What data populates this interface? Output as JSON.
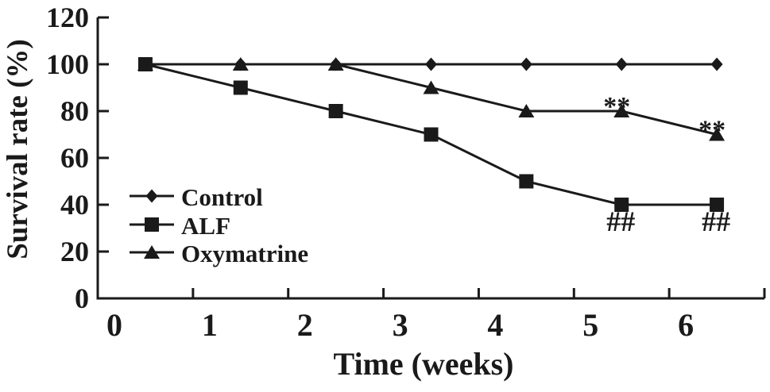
{
  "figure": {
    "background": "#ffffff",
    "ink_color": "#1a1a1a"
  },
  "chart_data": {
    "type": "line",
    "title": "",
    "xlabel": "Time (weeks)",
    "ylabel": "Survival rate (%)",
    "x_categories": [
      0,
      1,
      2,
      3,
      4,
      5,
      6
    ],
    "ylim": [
      0,
      120
    ],
    "yticks": [
      0,
      20,
      40,
      60,
      80,
      100,
      120
    ],
    "grid": false,
    "legend_position": "inside-left",
    "series": [
      {
        "name": "Control",
        "marker": "diamond",
        "values": [
          100,
          100,
          100,
          100,
          100,
          100,
          100
        ]
      },
      {
        "name": "ALF",
        "marker": "square",
        "values": [
          100,
          90,
          80,
          70,
          50,
          40,
          40
        ]
      },
      {
        "name": "Oxymatrine",
        "marker": "triangle",
        "values": [
          100,
          100,
          100,
          90,
          80,
          80,
          70
        ]
      }
    ],
    "annotations": [
      {
        "text": "**",
        "series": "Oxymatrine",
        "week": 5,
        "position": "above"
      },
      {
        "text": "**",
        "series": "Oxymatrine",
        "week": 6,
        "position": "above"
      },
      {
        "text": "##",
        "series": "ALF",
        "week": 5,
        "position": "below"
      },
      {
        "text": "##",
        "series": "ALF",
        "week": 6,
        "position": "below"
      }
    ]
  }
}
